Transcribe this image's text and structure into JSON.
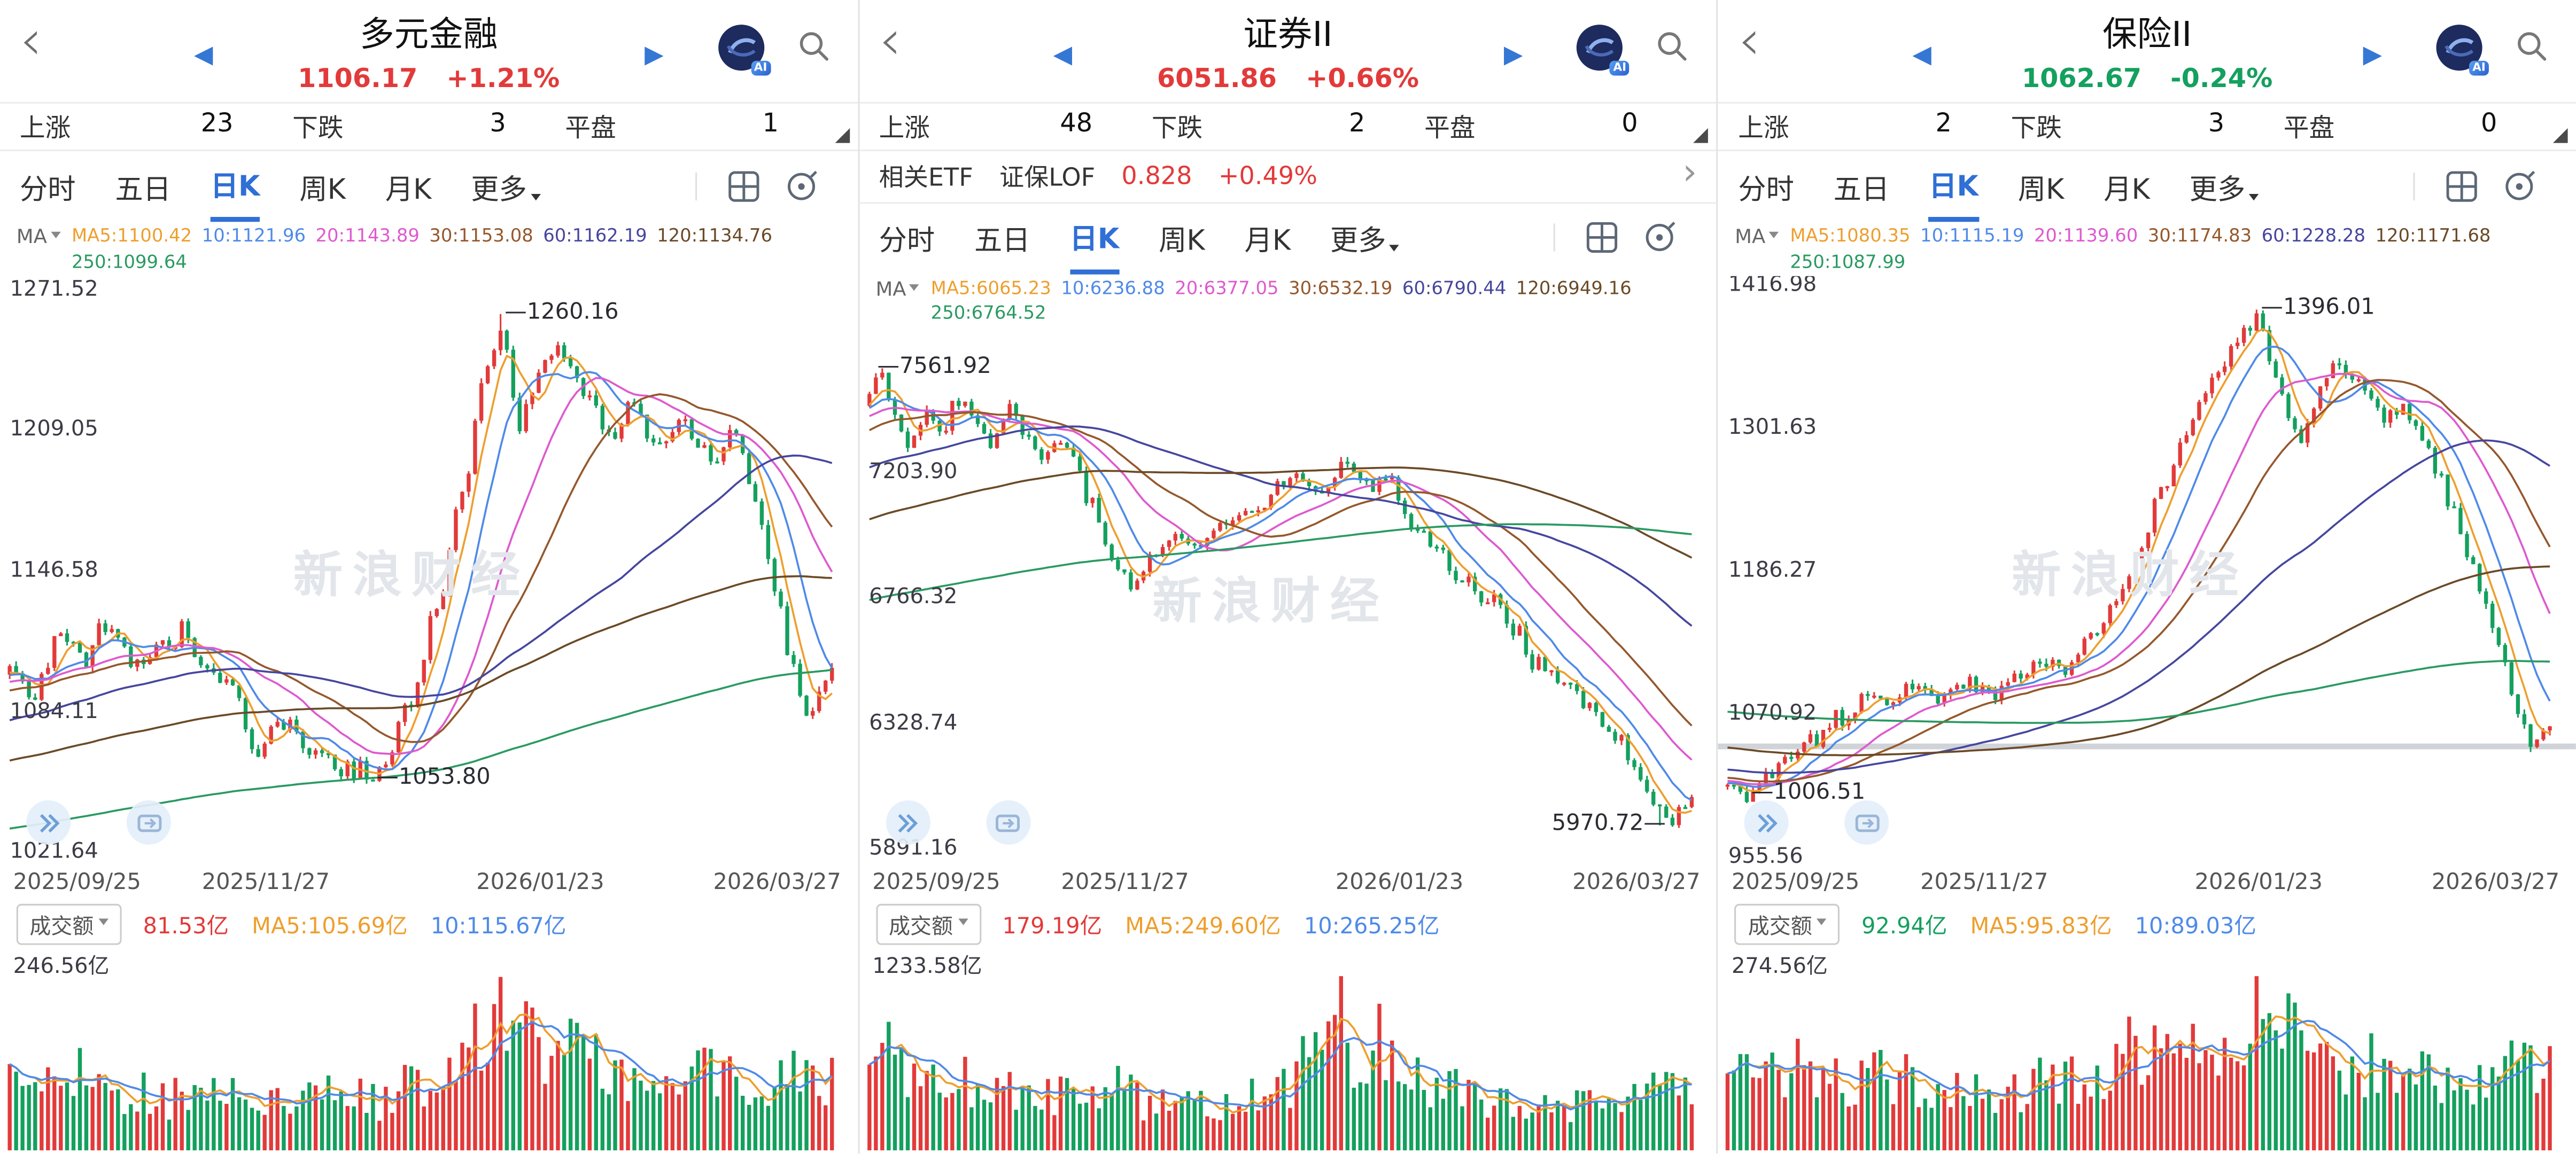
{
  "watermark": "新浪财经",
  "ma_label": "MA",
  "vol_label": "成交额",
  "tabs": [
    "分时",
    "五日",
    "日K",
    "周K",
    "月K",
    "更多"
  ],
  "active_tab": "日K",
  "stats_labels": {
    "up": "上涨",
    "down": "下跌",
    "flat": "平盘"
  },
  "icons": {
    "back": "‹",
    "prev": "◀",
    "next": "▶",
    "chevron_right": "›"
  },
  "colors": {
    "up": "#e23a3a",
    "down": "#14a05e",
    "accent_blue": "#3577d4",
    "ma": {
      "5": "#ee9f2e",
      "10": "#4f8ae8",
      "20": "#de5ace",
      "30": "#95582c",
      "60": "#46469f",
      "120": "#6b4a26",
      "250": "#2a9a62"
    }
  },
  "panels": [
    {
      "title": "多元金融",
      "price": "1106.17",
      "change": "+1.21%",
      "dir": "up",
      "stats": {
        "up": "23",
        "down": "3",
        "flat": "1"
      },
      "ma_items": [
        {
          "k": "MA5",
          "v": "1100.42",
          "w": "5"
        },
        {
          "k": "10",
          "v": "1121.96",
          "w": "10"
        },
        {
          "k": "20",
          "v": "1143.89",
          "w": "20"
        },
        {
          "k": "30",
          "v": "1153.08",
          "w": "30"
        },
        {
          "k": "60",
          "v": "1162.19",
          "w": "60"
        },
        {
          "k": "120",
          "v": "1134.76",
          "w": "120"
        },
        {
          "k": "250",
          "v": "1099.64",
          "w": "250"
        }
      ],
      "dates": [
        "2025/09/25",
        "2025/11/27",
        "2026/01/23",
        "2026/03/27"
      ],
      "vol_items": [
        {
          "t": "81.53亿",
          "c": "up"
        },
        {
          "t": "MA5:105.69亿",
          "c": "ma5"
        },
        {
          "t": "10:115.67亿",
          "c": "ma10"
        }
      ],
      "vol_axis_label": "246.56亿",
      "chart_data": {
        "type": "candlestick",
        "seed": 11,
        "view": {
          "min": 1016,
          "max": 1277
        },
        "y_ticks": [
          "1271.52",
          "1209.05",
          "1146.58",
          "1084.11",
          "1021.64"
        ],
        "x_ticks": [
          "2025/09/25",
          "2025/11/27",
          "2026/01/23",
          "2026/03/27"
        ],
        "high": {
          "text": "1260.16",
          "value": 1260.16,
          "x": 0.6,
          "side": "right"
        },
        "low": {
          "text": "1053.80",
          "value": 1053.8,
          "x": 0.445,
          "side": "right"
        },
        "anchors": [
          [
            0,
            1104
          ],
          [
            0.03,
            1092
          ],
          [
            0.06,
            1118
          ],
          [
            0.09,
            1108
          ],
          [
            0.12,
            1122
          ],
          [
            0.15,
            1105
          ],
          [
            0.18,
            1112
          ],
          [
            0.21,
            1118
          ],
          [
            0.24,
            1100
          ],
          [
            0.27,
            1095
          ],
          [
            0.3,
            1066
          ],
          [
            0.33,
            1082
          ],
          [
            0.36,
            1068
          ],
          [
            0.4,
            1060
          ],
          [
            0.445,
            1056
          ],
          [
            0.48,
            1082
          ],
          [
            0.52,
            1130
          ],
          [
            0.55,
            1180
          ],
          [
            0.58,
            1235
          ],
          [
            0.6,
            1252
          ],
          [
            0.62,
            1210
          ],
          [
            0.645,
            1232
          ],
          [
            0.67,
            1248
          ],
          [
            0.7,
            1225
          ],
          [
            0.73,
            1205
          ],
          [
            0.76,
            1222
          ],
          [
            0.79,
            1200
          ],
          [
            0.82,
            1212
          ],
          [
            0.85,
            1196
          ],
          [
            0.88,
            1208
          ],
          [
            0.905,
            1180
          ],
          [
            0.93,
            1140
          ],
          [
            0.95,
            1105
          ],
          [
            0.97,
            1082
          ],
          [
            0.985,
            1092
          ],
          [
            1,
            1106
          ]
        ],
        "pre_anchors": [
          [
            0,
            988
          ],
          [
            0.4,
            1012
          ],
          [
            0.75,
            1056
          ],
          [
            1,
            1100
          ]
        ],
        "vol_anchors": [
          [
            0,
            0.42
          ],
          [
            0.06,
            0.52
          ],
          [
            0.12,
            0.38
          ],
          [
            0.2,
            0.32
          ],
          [
            0.27,
            0.34
          ],
          [
            0.32,
            0.3
          ],
          [
            0.4,
            0.34
          ],
          [
            0.45,
            0.3
          ],
          [
            0.5,
            0.45
          ],
          [
            0.55,
            0.6
          ],
          [
            0.58,
            0.78
          ],
          [
            0.61,
            0.95
          ],
          [
            0.64,
            0.7
          ],
          [
            0.68,
            0.6
          ],
          [
            0.72,
            0.52
          ],
          [
            0.76,
            0.48
          ],
          [
            0.8,
            0.44
          ],
          [
            0.84,
            0.5
          ],
          [
            0.88,
            0.42
          ],
          [
            0.92,
            0.36
          ],
          [
            0.96,
            0.5
          ],
          [
            1,
            0.42
          ]
        ]
      }
    },
    {
      "title": "证券II",
      "price": "6051.86",
      "change": "+0.66%",
      "dir": "up",
      "stats": {
        "up": "48",
        "down": "2",
        "flat": "0"
      },
      "etf": {
        "label": "相关ETF",
        "name": "证保LOF",
        "price": "0.828",
        "change": "+0.49%"
      },
      "ma_items": [
        {
          "k": "MA5",
          "v": "6065.23",
          "w": "5"
        },
        {
          "k": "10",
          "v": "6236.88",
          "w": "10"
        },
        {
          "k": "20",
          "v": "6377.05",
          "w": "20"
        },
        {
          "k": "30",
          "v": "6532.19",
          "w": "30"
        },
        {
          "k": "60",
          "v": "6790.44",
          "w": "60"
        },
        {
          "k": "120",
          "v": "6949.16",
          "w": "120"
        },
        {
          "k": "250",
          "v": "6764.52",
          "w": "250"
        }
      ],
      "dates": [
        "2025/09/25",
        "2025/11/27",
        "2026/01/23",
        "2026/03/27"
      ],
      "vol_items": [
        {
          "t": "179.19亿",
          "c": "up"
        },
        {
          "t": "MA5:249.60亿",
          "c": "ma5"
        },
        {
          "t": "10:265.25亿",
          "c": "ma10"
        }
      ],
      "vol_axis_label": "1233.58亿",
      "chart_data": {
        "type": "candlestick",
        "seed": 23,
        "view": {
          "min": 5835,
          "max": 7700
        },
        "y_ticks": [
          "7203.90",
          "6766.32",
          "6328.74",
          "5891.16"
        ],
        "x_ticks": [
          "2025/09/25",
          "2025/11/27",
          "2026/01/23",
          "2026/03/27"
        ],
        "high": {
          "text": "7561.92",
          "value": 7561.92,
          "x": 0.012,
          "side": "right"
        },
        "low": {
          "text": "5970.72",
          "value": 5970.72,
          "x": 0.965,
          "side": "left"
        },
        "anchors": [
          [
            0,
            7480
          ],
          [
            0.012,
            7545
          ],
          [
            0.03,
            7385
          ],
          [
            0.05,
            7300
          ],
          [
            0.07,
            7420
          ],
          [
            0.09,
            7350
          ],
          [
            0.11,
            7448
          ],
          [
            0.13,
            7380
          ],
          [
            0.15,
            7300
          ],
          [
            0.17,
            7420
          ],
          [
            0.19,
            7330
          ],
          [
            0.21,
            7260
          ],
          [
            0.24,
            7300
          ],
          [
            0.27,
            7090
          ],
          [
            0.3,
            6880
          ],
          [
            0.32,
            6780
          ],
          [
            0.34,
            6900
          ],
          [
            0.37,
            6980
          ],
          [
            0.4,
            6940
          ],
          [
            0.43,
            7010
          ],
          [
            0.46,
            7060
          ],
          [
            0.49,
            7120
          ],
          [
            0.52,
            7200
          ],
          [
            0.55,
            7130
          ],
          [
            0.58,
            7230
          ],
          [
            0.6,
            7150
          ],
          [
            0.63,
            7180
          ],
          [
            0.66,
            7020
          ],
          [
            0.69,
            6930
          ],
          [
            0.72,
            6830
          ],
          [
            0.75,
            6760
          ],
          [
            0.78,
            6650
          ],
          [
            0.81,
            6550
          ],
          [
            0.84,
            6480
          ],
          [
            0.87,
            6400
          ],
          [
            0.9,
            6300
          ],
          [
            0.93,
            6180
          ],
          [
            0.955,
            6060
          ],
          [
            0.97,
            5995
          ],
          [
            0.985,
            6030
          ],
          [
            1,
            6052
          ]
        ],
        "pre_anchors": [
          [
            0,
            6350
          ],
          [
            0.45,
            6600
          ],
          [
            0.8,
            7050
          ],
          [
            1,
            7430
          ]
        ],
        "vol_anchors": [
          [
            0,
            0.7
          ],
          [
            0.04,
            0.55
          ],
          [
            0.08,
            0.48
          ],
          [
            0.12,
            0.42
          ],
          [
            0.16,
            0.38
          ],
          [
            0.2,
            0.35
          ],
          [
            0.25,
            0.32
          ],
          [
            0.3,
            0.4
          ],
          [
            0.35,
            0.28
          ],
          [
            0.4,
            0.27
          ],
          [
            0.45,
            0.3
          ],
          [
            0.5,
            0.38
          ],
          [
            0.54,
            0.6
          ],
          [
            0.565,
            0.95
          ],
          [
            0.59,
            0.55
          ],
          [
            0.62,
            0.65
          ],
          [
            0.66,
            0.45
          ],
          [
            0.7,
            0.38
          ],
          [
            0.75,
            0.33
          ],
          [
            0.8,
            0.3
          ],
          [
            0.85,
            0.28
          ],
          [
            0.9,
            0.3
          ],
          [
            0.95,
            0.36
          ],
          [
            1,
            0.33
          ]
        ]
      }
    },
    {
      "title": "保险II",
      "price": "1062.67",
      "change": "-0.24%",
      "dir": "down",
      "stats": {
        "up": "2",
        "down": "3",
        "flat": "0"
      },
      "ma_items": [
        {
          "k": "MA5",
          "v": "1080.35",
          "w": "5"
        },
        {
          "k": "10",
          "v": "1115.19",
          "w": "10"
        },
        {
          "k": "20",
          "v": "1139.60",
          "w": "20"
        },
        {
          "k": "30",
          "v": "1174.83",
          "w": "30"
        },
        {
          "k": "60",
          "v": "1228.28",
          "w": "60"
        },
        {
          "k": "120",
          "v": "1171.68",
          "w": "120"
        },
        {
          "k": "250",
          "v": "1087.99",
          "w": "250"
        }
      ],
      "dates": [
        "2025/09/25",
        "2025/11/27",
        "2026/01/23",
        "2026/03/27"
      ],
      "vol_items": [
        {
          "t": "92.94亿",
          "c": "down"
        },
        {
          "t": "MA5:95.83亿",
          "c": "ma5"
        },
        {
          "t": "10:89.03亿",
          "c": "ma10"
        }
      ],
      "vol_axis_label": "274.56亿",
      "chart_data": {
        "type": "candlestick",
        "seed": 37,
        "view": {
          "min": 949,
          "max": 1423
        },
        "baseline": 1044,
        "y_ticks": [
          "1416.98",
          "1301.63",
          "1186.27",
          "1070.92",
          "955.56"
        ],
        "x_ticks": [
          "2025/09/25",
          "2025/11/27",
          "2026/01/23",
          "2026/03/27"
        ],
        "high": {
          "text": "1396.01",
          "value": 1396.01,
          "x": 0.645,
          "side": "right"
        },
        "low": {
          "text": "1006.51",
          "value": 1006.51,
          "x": 0.03,
          "side": "right"
        },
        "anchors": [
          [
            0,
            1016
          ],
          [
            0.02,
            1008
          ],
          [
            0.05,
            1022
          ],
          [
            0.08,
            1040
          ],
          [
            0.11,
            1052
          ],
          [
            0.14,
            1066
          ],
          [
            0.17,
            1088
          ],
          [
            0.2,
            1076
          ],
          [
            0.23,
            1092
          ],
          [
            0.26,
            1080
          ],
          [
            0.29,
            1096
          ],
          [
            0.32,
            1084
          ],
          [
            0.35,
            1100
          ],
          [
            0.38,
            1112
          ],
          [
            0.41,
            1106
          ],
          [
            0.44,
            1130
          ],
          [
            0.47,
            1158
          ],
          [
            0.5,
            1200
          ],
          [
            0.53,
            1256
          ],
          [
            0.56,
            1300
          ],
          [
            0.59,
            1340
          ],
          [
            0.62,
            1372
          ],
          [
            0.645,
            1388
          ],
          [
            0.66,
            1352
          ],
          [
            0.68,
            1320
          ],
          [
            0.7,
            1298
          ],
          [
            0.72,
            1330
          ],
          [
            0.74,
            1352
          ],
          [
            0.76,
            1340
          ],
          [
            0.78,
            1326
          ],
          [
            0.8,
            1310
          ],
          [
            0.82,
            1318
          ],
          [
            0.84,
            1296
          ],
          [
            0.86,
            1272
          ],
          [
            0.88,
            1236
          ],
          [
            0.9,
            1196
          ],
          [
            0.92,
            1160
          ],
          [
            0.94,
            1120
          ],
          [
            0.96,
            1076
          ],
          [
            0.975,
            1046
          ],
          [
            0.99,
            1052
          ],
          [
            1,
            1063
          ]
        ],
        "pre_anchors": [
          [
            0,
            1120
          ],
          [
            0.5,
            1080
          ],
          [
            0.85,
            1030
          ],
          [
            1,
            1014
          ]
        ],
        "vol_anchors": [
          [
            0,
            0.5
          ],
          [
            0.05,
            0.44
          ],
          [
            0.1,
            0.52
          ],
          [
            0.15,
            0.4
          ],
          [
            0.2,
            0.46
          ],
          [
            0.25,
            0.36
          ],
          [
            0.3,
            0.42
          ],
          [
            0.35,
            0.36
          ],
          [
            0.4,
            0.44
          ],
          [
            0.45,
            0.5
          ],
          [
            0.5,
            0.62
          ],
          [
            0.54,
            0.72
          ],
          [
            0.58,
            0.6
          ],
          [
            0.62,
            0.7
          ],
          [
            0.65,
            0.95
          ],
          [
            0.68,
            0.78
          ],
          [
            0.72,
            0.62
          ],
          [
            0.76,
            0.56
          ],
          [
            0.8,
            0.52
          ],
          [
            0.85,
            0.48
          ],
          [
            0.9,
            0.44
          ],
          [
            0.95,
            0.56
          ],
          [
            1,
            0.5
          ]
        ]
      }
    }
  ]
}
